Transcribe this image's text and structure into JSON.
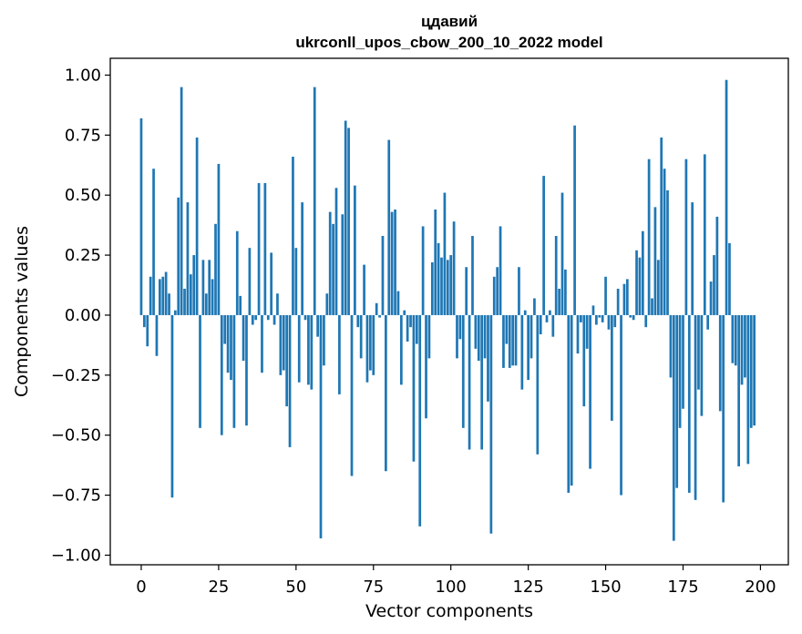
{
  "chart_data": {
    "type": "bar",
    "title": "цдавий",
    "subtitle": "ukrconll_upos_cbow_200_10_2022 model",
    "xlabel": "Vector components",
    "ylabel": "Components values",
    "xlim": [
      -10,
      209
    ],
    "ylim": [
      -1.04,
      1.07
    ],
    "xticks": [
      0,
      25,
      50,
      75,
      100,
      125,
      150,
      175,
      200
    ],
    "yticks": [
      -1.0,
      -0.75,
      -0.5,
      -0.25,
      0.0,
      0.25,
      0.5,
      0.75,
      1.0
    ],
    "xtick_labels": [
      "0",
      "25",
      "50",
      "75",
      "100",
      "125",
      "150",
      "175",
      "200"
    ],
    "ytick_labels": [
      "−1.00",
      "−0.75",
      "−0.50",
      "−0.25",
      "0.00",
      "0.25",
      "0.50",
      "0.75",
      "1.00"
    ],
    "bar_color": "#1f77b4",
    "grid": false,
    "values": [
      0.82,
      -0.05,
      -0.13,
      0.16,
      0.61,
      -0.17,
      0.15,
      0.16,
      0.18,
      0.09,
      -0.76,
      0.02,
      0.49,
      0.95,
      0.11,
      0.47,
      0.17,
      0.25,
      0.74,
      -0.47,
      0.23,
      0.09,
      0.23,
      0.15,
      0.38,
      0.63,
      -0.5,
      -0.12,
      -0.24,
      -0.27,
      -0.47,
      0.35,
      0.08,
      -0.19,
      -0.46,
      0.28,
      -0.04,
      -0.02,
      0.55,
      -0.24,
      0.55,
      -0.02,
      0.26,
      -0.04,
      0.09,
      -0.25,
      -0.23,
      -0.38,
      -0.55,
      0.66,
      0.28,
      -0.28,
      0.47,
      -0.02,
      -0.29,
      -0.31,
      0.95,
      -0.09,
      -0.93,
      -0.21,
      0.09,
      0.43,
      0.38,
      0.53,
      -0.33,
      0.42,
      0.81,
      0.78,
      -0.67,
      0.54,
      -0.05,
      -0.18,
      0.21,
      -0.28,
      -0.23,
      -0.25,
      0.05,
      -0.01,
      0.33,
      -0.65,
      0.73,
      0.43,
      0.44,
      0.1,
      -0.29,
      0.02,
      -0.11,
      -0.05,
      -0.61,
      -0.12,
      -0.88,
      0.37,
      -0.43,
      -0.18,
      0.22,
      0.44,
      0.3,
      0.24,
      0.51,
      0.23,
      0.25,
      0.39,
      -0.18,
      -0.1,
      -0.47,
      0.2,
      -0.56,
      0.33,
      -0.14,
      -0.19,
      -0.56,
      -0.18,
      -0.36,
      -0.91,
      0.16,
      0.2,
      0.37,
      -0.22,
      -0.12,
      -0.22,
      -0.21,
      -0.21,
      0.2,
      -0.31,
      0.02,
      -0.27,
      -0.18,
      0.07,
      -0.58,
      -0.08,
      0.58,
      -0.03,
      0.02,
      -0.09,
      0.33,
      0.11,
      0.51,
      0.19,
      -0.74,
      -0.71,
      0.79,
      -0.16,
      -0.03,
      -0.38,
      -0.14,
      -0.64,
      0.04,
      -0.04,
      -0.01,
      -0.03,
      0.16,
      -0.06,
      -0.44,
      -0.05,
      0.11,
      -0.75,
      0.13,
      0.15,
      -0.01,
      -0.02,
      0.27,
      0.24,
      0.35,
      -0.05,
      0.65,
      0.07,
      0.45,
      0.23,
      0.74,
      0.61,
      0.52,
      -0.26,
      -0.94,
      -0.72,
      -0.47,
      -0.39,
      0.65,
      -0.74,
      0.47,
      -0.77,
      -0.31,
      -0.42,
      0.67,
      -0.06,
      0.14,
      0.25,
      0.41,
      -0.4,
      -0.78,
      0.98,
      0.3,
      -0.2,
      -0.21,
      -0.63,
      -0.29,
      -0.26,
      -0.62,
      -0.47,
      -0.46,
      0.0
    ]
  }
}
